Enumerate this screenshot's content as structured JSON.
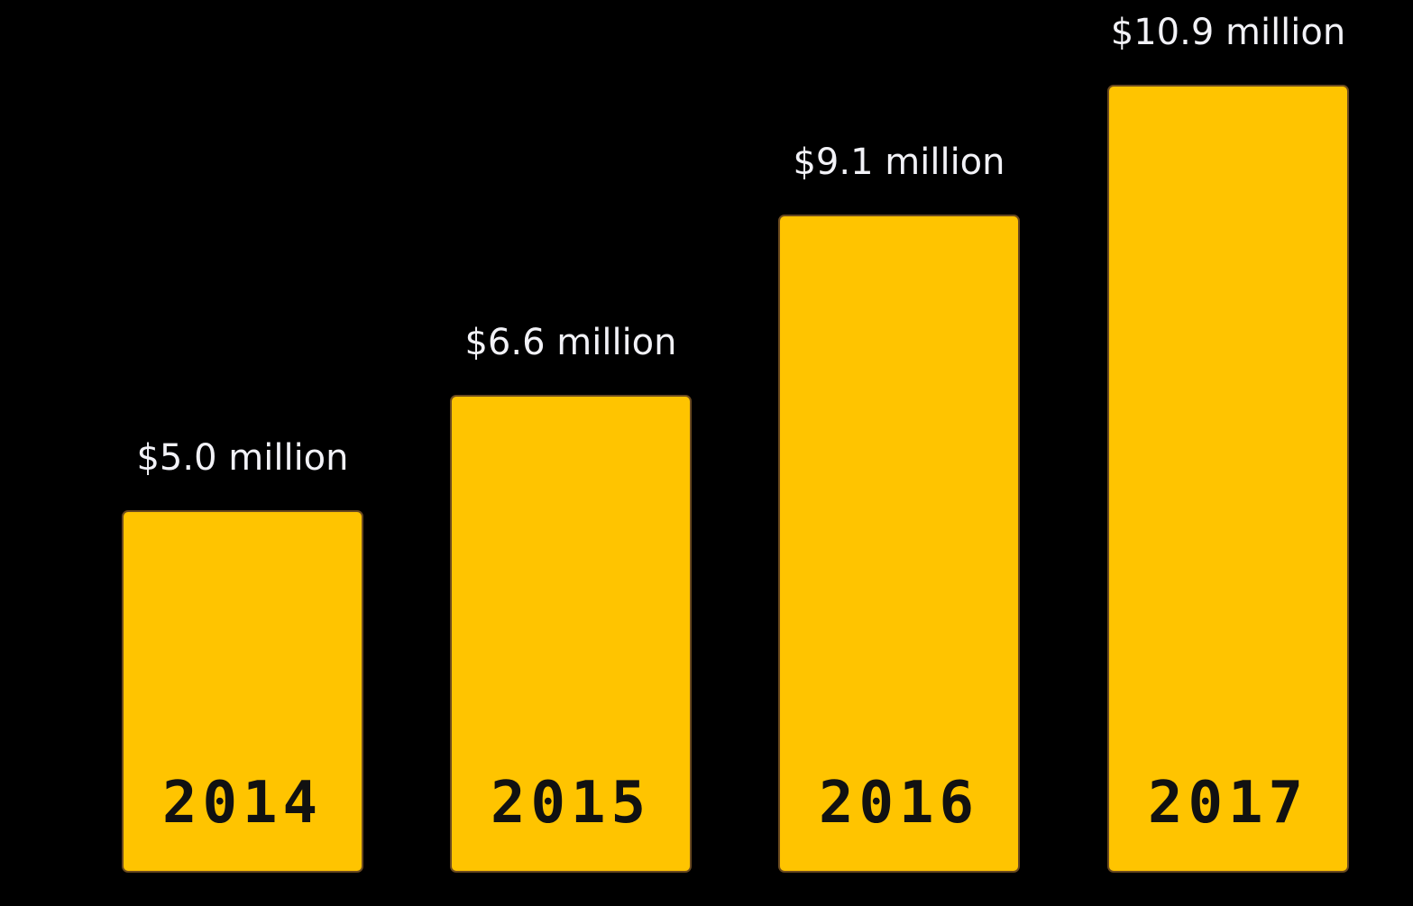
{
  "colors": {
    "background": "#000000",
    "bar": "#ffc400",
    "bar_edge": "#6b4a1f",
    "value_label": "#f2f2f7",
    "year_label": "#111111"
  },
  "chart_data": {
    "type": "bar",
    "categories": [
      "2014",
      "2015",
      "2016",
      "2017"
    ],
    "values": [
      5.0,
      6.6,
      9.1,
      10.9
    ],
    "value_labels": [
      "$5.0 million",
      "$6.6 million",
      "$9.1 million",
      "$10.9 million"
    ],
    "title": "",
    "xlabel": "",
    "ylabel": "",
    "ylim": [
      0,
      10.9
    ],
    "grid": false,
    "legend": "none"
  }
}
